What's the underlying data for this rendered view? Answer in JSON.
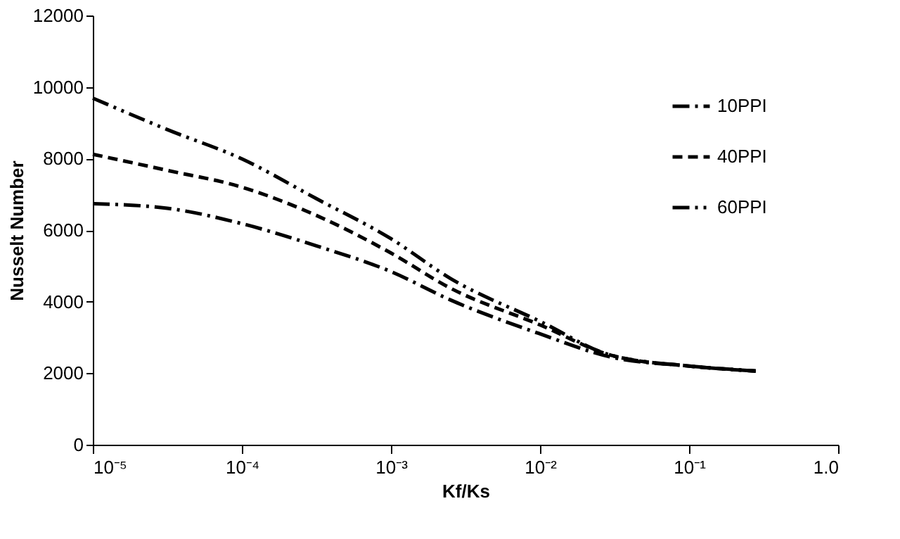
{
  "chart_data": {
    "type": "line",
    "xlabel": "Kf/Ks",
    "ylabel": "Nusselt Number",
    "x": [
      1e-05,
      3.16e-05,
      0.0001,
      0.000316,
      0.001,
      0.0025,
      0.01,
      0.03,
      0.1,
      0.28
    ],
    "series": [
      {
        "name": "10PPI",
        "color": "#000000",
        "line_style": "dashdot",
        "values": [
          6740,
          6610,
          6180,
          5560,
          4840,
          4050,
          3100,
          2450,
          2200,
          2060
        ]
      },
      {
        "name": "40PPI",
        "color": "#000000",
        "line_style": "dashed",
        "values": [
          8120,
          7670,
          7200,
          6410,
          5360,
          4380,
          3350,
          2500,
          2200,
          2060
        ]
      },
      {
        "name": "60PPI",
        "color": "#000000",
        "line_style": "dashdotdot",
        "values": [
          9690,
          8810,
          7990,
          6880,
          5760,
          4650,
          3450,
          2500,
          2200,
          2060
        ]
      }
    ],
    "log": "x",
    "xlim": [
      1e-05,
      1
    ],
    "xticks": [
      {
        "value": 1e-05,
        "label": "10⁻⁵"
      },
      {
        "value": 0.0001,
        "label": "10⁻⁴"
      },
      {
        "value": 0.001,
        "label": "10⁻³"
      },
      {
        "value": 0.01,
        "label": "10⁻²"
      },
      {
        "value": 0.1,
        "label": "10⁻¹"
      },
      {
        "value": 1,
        "label": "1.0"
      }
    ],
    "ylim": [
      0,
      12000
    ],
    "yticks": [
      0,
      2000,
      4000,
      6000,
      8000,
      10000,
      12000
    ],
    "grid": false,
    "legend": "top right",
    "marker": "none"
  }
}
